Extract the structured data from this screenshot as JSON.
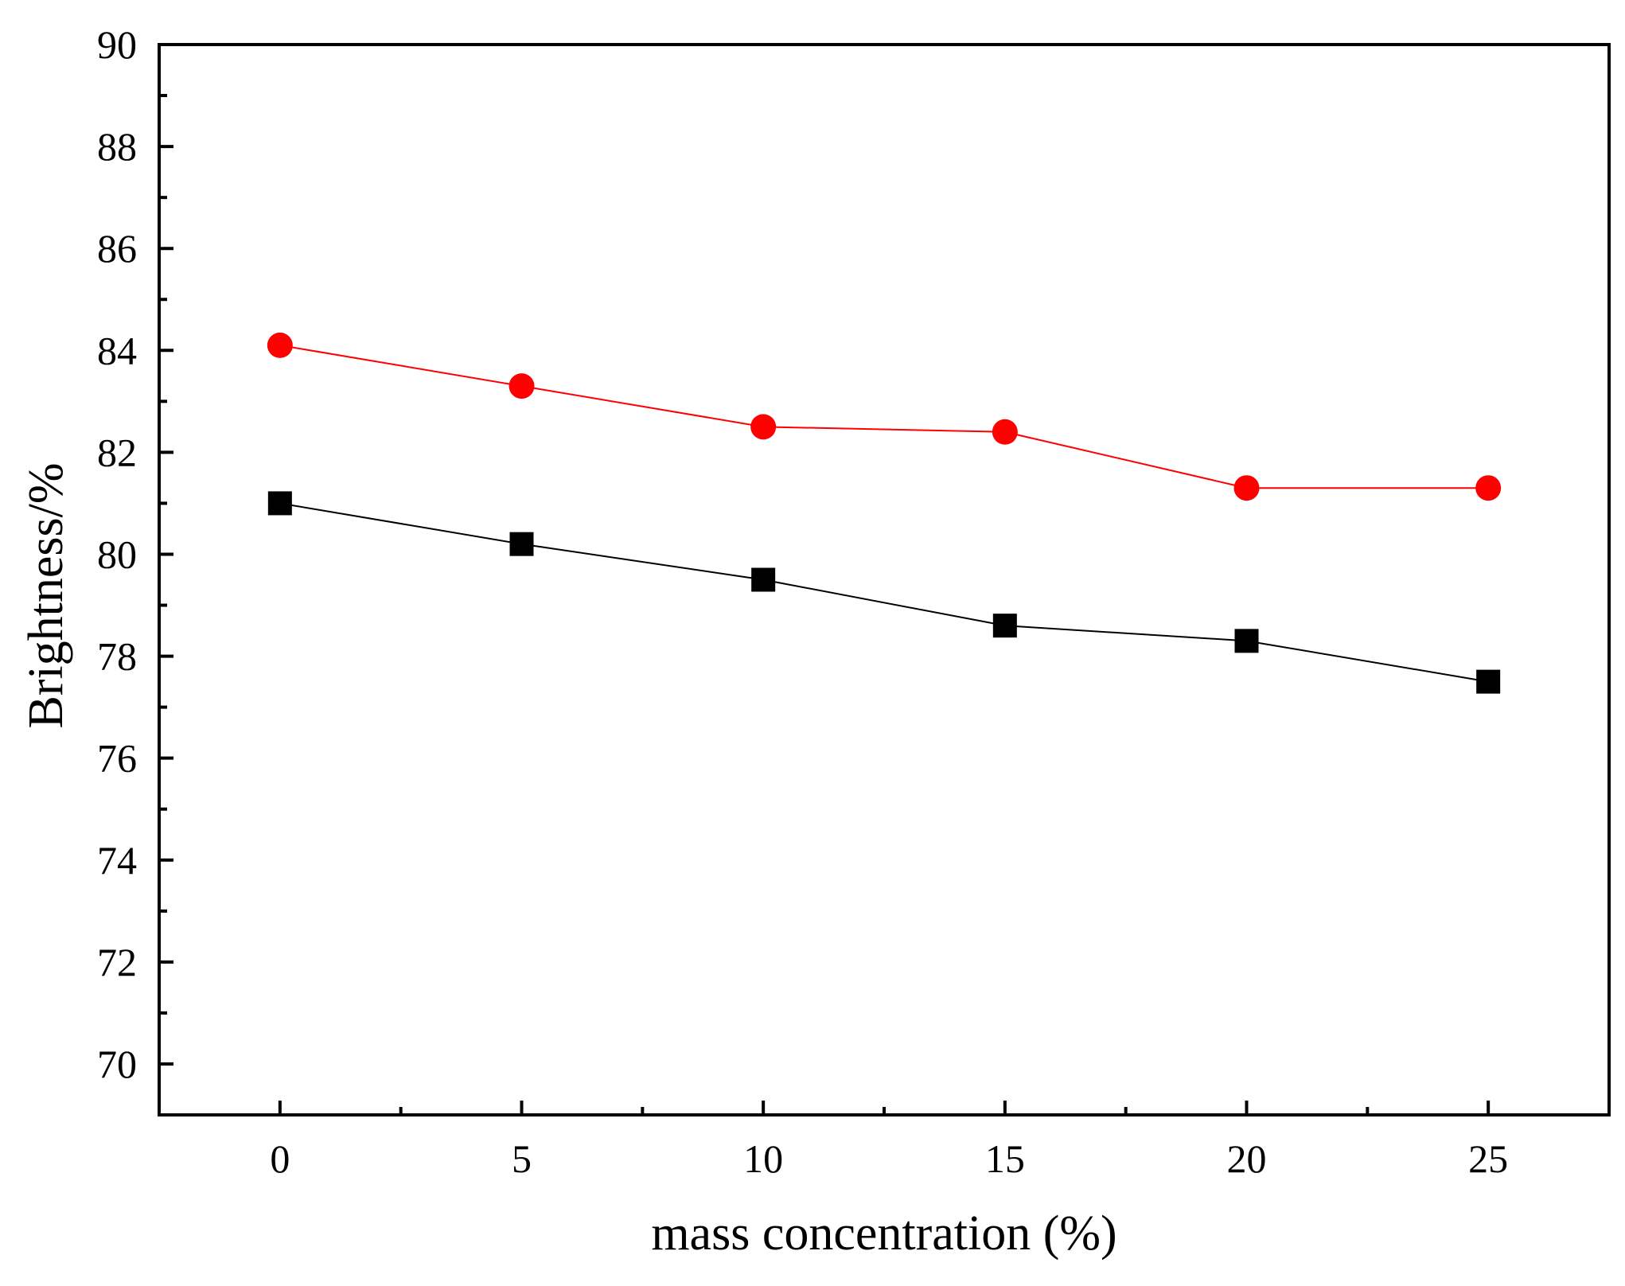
{
  "chart_data": {
    "type": "line",
    "title": "",
    "xlabel": "mass concentration (%)",
    "ylabel": "Brightness/%",
    "x": [
      0,
      5,
      10,
      15,
      20,
      25
    ],
    "xlim": [
      -2.5,
      27.5
    ],
    "ylim": [
      69,
      90
    ],
    "xticks": [
      0,
      5,
      10,
      15,
      20,
      25
    ],
    "xtick_labels": [
      "0",
      "5",
      "10",
      "15",
      "20",
      "25"
    ],
    "yticks": [
      70,
      72,
      74,
      76,
      78,
      80,
      82,
      84,
      86,
      88,
      90
    ],
    "ytick_labels": [
      "70",
      "72",
      "74",
      "76",
      "78",
      "80",
      "82",
      "84",
      "86",
      "88",
      "90"
    ],
    "grid": false,
    "series": [
      {
        "name": "series-red-circle",
        "marker": "circle",
        "color": "#ff0000",
        "values": [
          84.1,
          83.3,
          82.5,
          82.4,
          81.3,
          81.3
        ]
      },
      {
        "name": "series-black-square",
        "marker": "square",
        "color": "#000000",
        "values": [
          81.0,
          80.2,
          79.5,
          78.6,
          78.3,
          77.5
        ]
      }
    ]
  }
}
